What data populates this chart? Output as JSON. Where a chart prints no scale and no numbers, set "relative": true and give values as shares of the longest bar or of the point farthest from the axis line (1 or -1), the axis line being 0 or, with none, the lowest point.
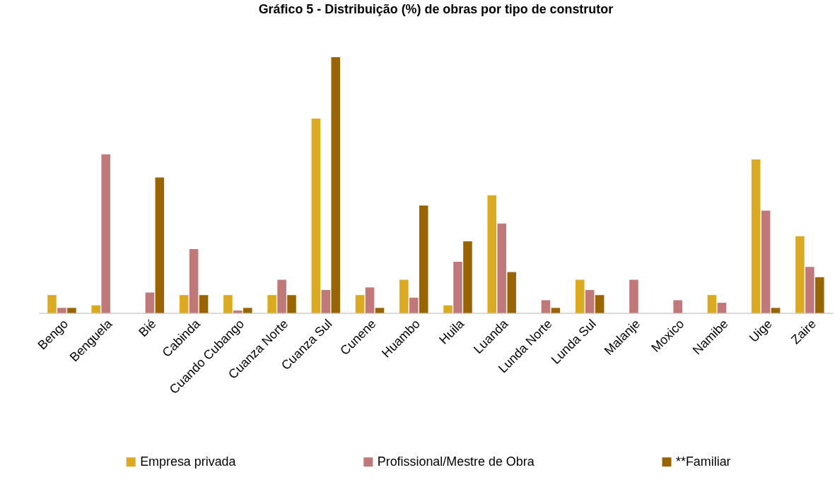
{
  "chart_data": {
    "type": "bar",
    "title": "Gráfico 5 - Distribuição (%) de obras por tipo de construtor",
    "categories": [
      "Bengo",
      "Benguela",
      "Bié",
      "Cabinda",
      "Cuando Cubango",
      "Cuanza Norte",
      "Cuanza Sul",
      "Cunene",
      "Huambo",
      "Huila",
      "Luanda",
      "Lunda Norte",
      "Lunda Sul",
      "Malanje",
      "Moxico",
      "Namibe",
      "Uige",
      "Zaire"
    ],
    "relative": true,
    "legend": "bottom",
    "series": [
      {
        "name": "Empresa privada",
        "color": "#dcaa1e",
        "values": [
          0.07,
          0.03,
          null,
          0.07,
          0.07,
          0.07,
          0.76,
          0.07,
          0.13,
          0.03,
          0.46,
          null,
          0.13,
          null,
          null,
          0.07,
          0.6,
          0.3
        ]
      },
      {
        "name": "Profissional/Mestre de Obra",
        "color": "#c07878",
        "values": [
          0.02,
          0.62,
          0.08,
          0.25,
          0.01,
          0.13,
          0.09,
          0.1,
          0.06,
          0.2,
          0.35,
          0.05,
          0.09,
          0.13,
          0.05,
          0.04,
          0.4,
          0.18
        ]
      },
      {
        "name": "**Familiar",
        "color": "#9a6500",
        "values": [
          0.02,
          null,
          0.53,
          0.07,
          0.02,
          0.07,
          1,
          0.02,
          0.42,
          0.28,
          0.16,
          0.02,
          0.07,
          null,
          null,
          null,
          0.02,
          0.14
        ]
      }
    ]
  }
}
